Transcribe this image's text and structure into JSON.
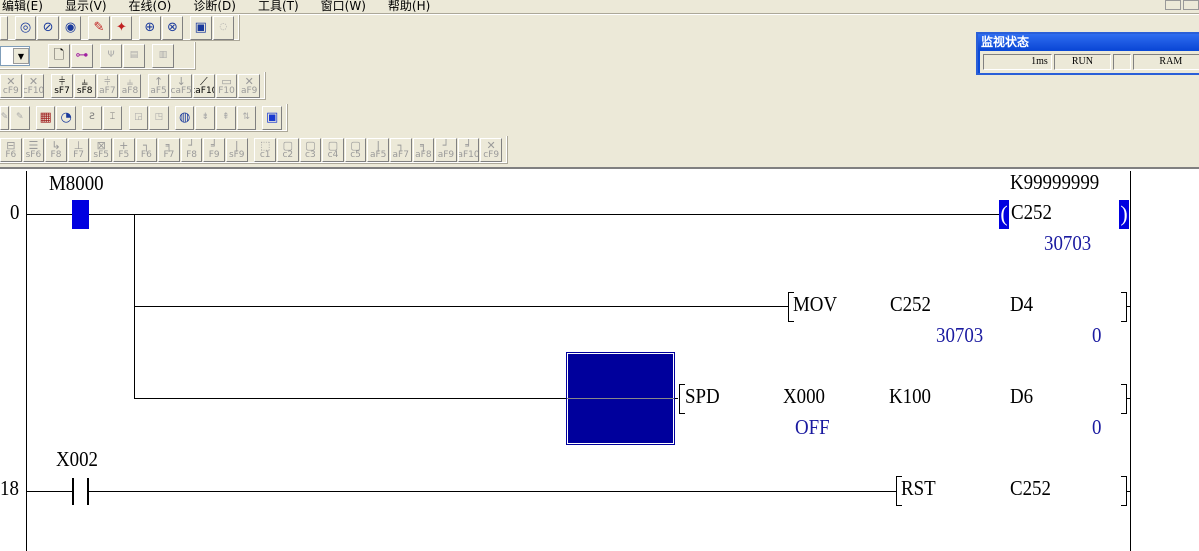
{
  "menu": [
    "编辑(E)",
    "显示(V)",
    "在线(O)",
    "诊断(D)",
    "工具(T)",
    "窗口(W)",
    "帮助(H)"
  ],
  "toolbar_row1": [
    "monitor-mode-icon",
    "monitor-stop-icon",
    "batch-monitor-icon",
    "entry-device-icon",
    "device-test-icon",
    "find-icon",
    "find-replace-icon",
    "comment-icon",
    "zoom-icon"
  ],
  "toolbar_row2": [
    "list-icon",
    "tree-icon",
    "device-batch-icon",
    "program-check-icon",
    "column-icon"
  ],
  "toolbar_row3": [
    "cF9",
    "cF10",
    "sF7",
    "sF8",
    "aF7",
    "aF8",
    "aF5",
    "caF5",
    "caF10",
    "F10",
    "aF9"
  ],
  "toolbar_row4": [
    "edit-icon",
    "edit-2-icon",
    "device-grid-icon",
    "monitor-zoom-icon",
    "ladder-icon",
    "step-icon",
    "window-icon",
    "window-2-icon",
    "search-device-icon",
    "insert-row-icon",
    "delete-row-icon",
    "convert-icon",
    "blue-panel-icon"
  ],
  "toolbar_row5": [
    "F6",
    "sF6",
    "F8",
    "F7",
    "sF5",
    "F5",
    "F6",
    "F7",
    "F8",
    "F9",
    "sF9",
    "c1",
    "c2",
    "c3",
    "c4",
    "c5",
    "aF5",
    "aF7",
    "aF8",
    "aF9",
    "aF10",
    "cF9"
  ],
  "monitor": {
    "title": "监视状态",
    "scan": "1ms",
    "status": "RUN",
    "blank": "",
    "memory": "RAM"
  },
  "ladder": {
    "rung0": {
      "step": "0",
      "contact": "M8000",
      "coil_set": "K99999999",
      "coil": "C252",
      "coil_value": "30703",
      "mov": {
        "op": "MOV",
        "src": "C252",
        "dst": "D4",
        "src_value": "30703",
        "dst_value": "0"
      },
      "spd": {
        "op": "SPD",
        "src": "X000",
        "k": "K100",
        "dst": "D6",
        "src_value": "OFF",
        "dst_value": "0"
      }
    },
    "rung18": {
      "step": "18",
      "contact": "X002",
      "rst": {
        "op": "RST",
        "dev": "C252"
      }
    }
  },
  "colors": {
    "active": "#0000e0",
    "selection": "#00009c",
    "value": "#1a1aa0",
    "chrome": "#ece9d8"
  }
}
